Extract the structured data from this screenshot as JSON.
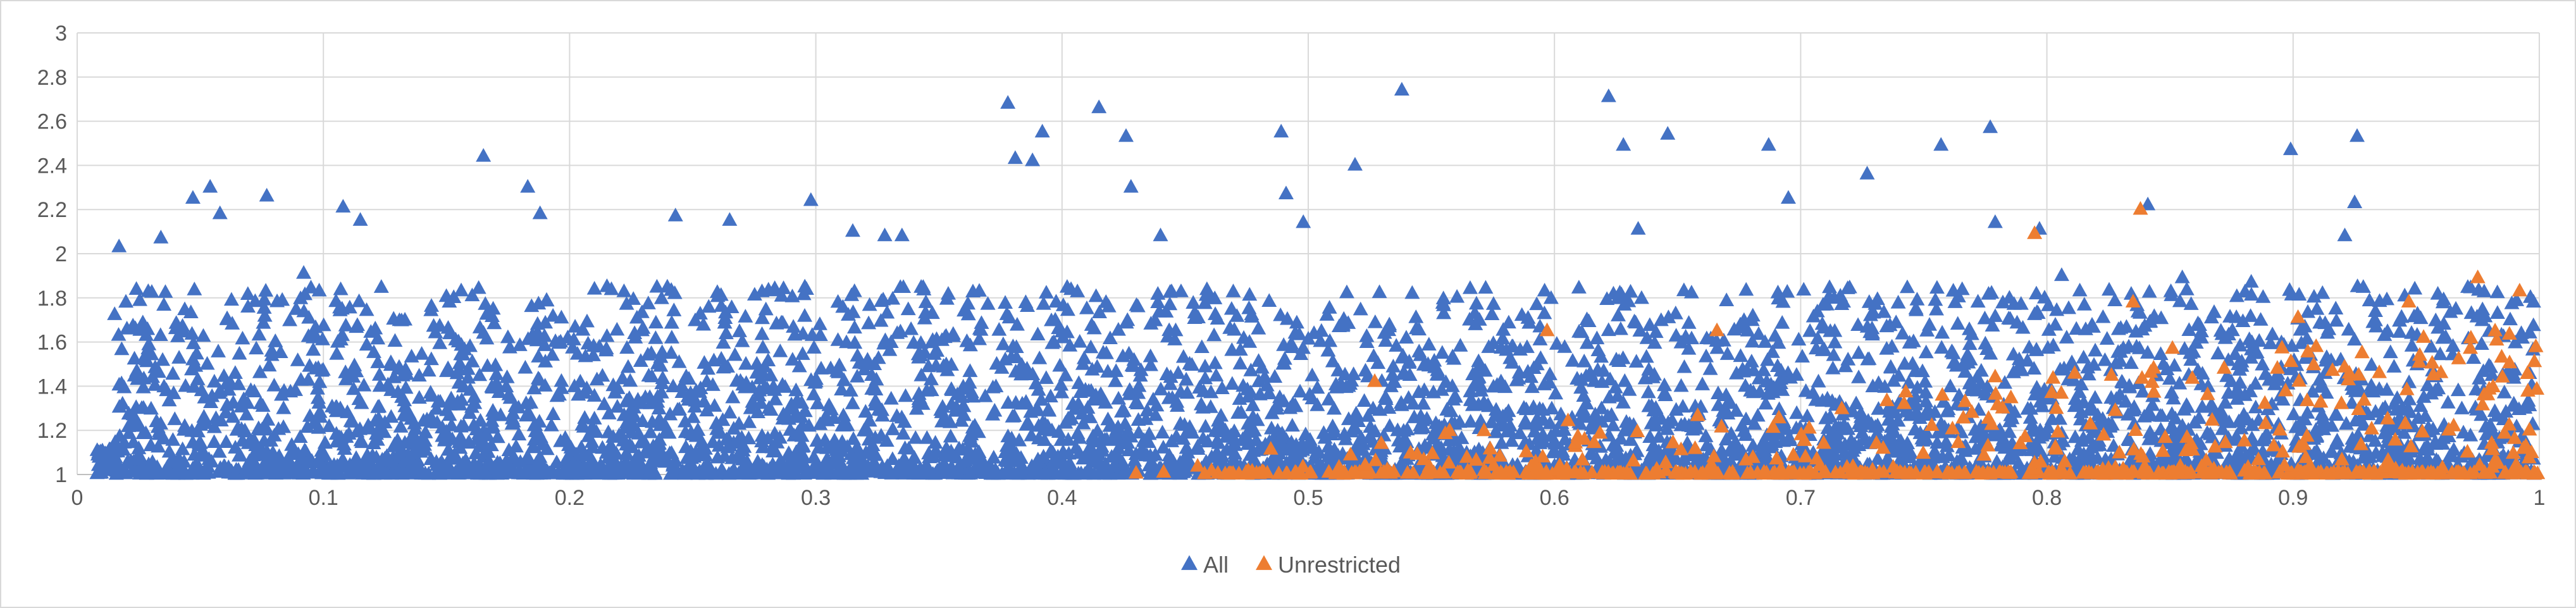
{
  "chart_data": {
    "type": "scatter",
    "title": "",
    "xlabel": "",
    "ylabel": "",
    "xlim": [
      0,
      1
    ],
    "ylim": [
      1,
      3
    ],
    "x_ticks": [
      0,
      0.1,
      0.2,
      0.3,
      0.4,
      0.5,
      0.6,
      0.7,
      0.8,
      0.9,
      1
    ],
    "y_ticks": [
      1,
      1.2,
      1.4,
      1.6,
      1.8,
      2,
      2.2,
      2.4,
      2.6,
      2.8,
      3
    ],
    "x_tick_labels": [
      "0",
      "0.1",
      "0.2",
      "0.3",
      "0.4",
      "0.5",
      "0.6",
      "0.7",
      "0.8",
      "0.9",
      "1"
    ],
    "y_tick_labels": [
      "1",
      "1.2",
      "1.4",
      "1.6",
      "1.8",
      "2",
      "2.2",
      "2.4",
      "2.6",
      "2.8",
      "3"
    ],
    "grid": true,
    "legend_position": "bottom",
    "marker": "triangle",
    "series": [
      {
        "name": "All",
        "color": "#4472C4",
        "points": [
          [
            0.017,
            2.03
          ],
          [
            0.034,
            2.07
          ],
          [
            0.047,
            2.25
          ],
          [
            0.054,
            2.3
          ],
          [
            0.058,
            2.18
          ],
          [
            0.077,
            2.26
          ],
          [
            0.092,
            1.91
          ],
          [
            0.108,
            2.21
          ],
          [
            0.115,
            2.15
          ],
          [
            0.165,
            2.44
          ],
          [
            0.183,
            2.3
          ],
          [
            0.188,
            2.18
          ],
          [
            0.243,
            2.17
          ],
          [
            0.265,
            2.15
          ],
          [
            0.298,
            2.24
          ],
          [
            0.315,
            2.1
          ],
          [
            0.328,
            2.08
          ],
          [
            0.335,
            2.08
          ],
          [
            0.378,
            2.68
          ],
          [
            0.381,
            2.43
          ],
          [
            0.392,
            2.55
          ],
          [
            0.388,
            2.42
          ],
          [
            0.415,
            2.66
          ],
          [
            0.426,
            2.53
          ],
          [
            0.428,
            2.3
          ],
          [
            0.44,
            2.08
          ],
          [
            0.489,
            2.55
          ],
          [
            0.491,
            2.27
          ],
          [
            0.498,
            2.14
          ],
          [
            0.519,
            2.4
          ],
          [
            0.538,
            2.74
          ],
          [
            0.596,
            1.83
          ],
          [
            0.622,
            2.71
          ],
          [
            0.628,
            2.49
          ],
          [
            0.634,
            2.11
          ],
          [
            0.646,
            2.54
          ],
          [
            0.687,
            2.49
          ],
          [
            0.695,
            2.25
          ],
          [
            0.727,
            2.36
          ],
          [
            0.757,
            2.49
          ],
          [
            0.777,
            2.57
          ],
          [
            0.779,
            2.14
          ],
          [
            0.797,
            2.11
          ],
          [
            0.841,
            2.22
          ],
          [
            0.899,
            2.47
          ],
          [
            0.921,
            2.08
          ],
          [
            0.926,
            2.53
          ],
          [
            0.925,
            2.23
          ],
          [
            0.806,
            1.9
          ],
          [
            0.855,
            1.89
          ],
          [
            0.883,
            1.87
          ],
          [
            0.944,
            1.71
          ],
          [
            0.962,
            1.62
          ]
        ]
      },
      {
        "name": "Unrestricted",
        "color": "#ED7D31",
        "points": [
          [
            0.527,
            1.42
          ],
          [
            0.597,
            1.65
          ],
          [
            0.666,
            1.65
          ],
          [
            0.742,
            1.32
          ],
          [
            0.782,
            1.3
          ],
          [
            0.795,
            2.09
          ],
          [
            0.802,
            1.37
          ],
          [
            0.835,
            1.78
          ],
          [
            0.838,
            2.2
          ],
          [
            0.851,
            1.57
          ],
          [
            0.872,
            1.48
          ],
          [
            0.902,
            1.71
          ],
          [
            0.916,
            1.47
          ],
          [
            0.928,
            1.55
          ],
          [
            0.935,
            1.46
          ],
          [
            0.947,
            1.78
          ],
          [
            0.953,
            1.62
          ],
          [
            0.96,
            1.46
          ],
          [
            0.972,
            1.57
          ],
          [
            0.975,
            1.89
          ],
          [
            0.979,
            1.36
          ],
          [
            0.985,
            1.44
          ],
          [
            0.992,
            1.83
          ],
          [
            0.998,
            1.51
          ],
          [
            0.996,
            1.2
          ]
        ]
      }
    ]
  }
}
